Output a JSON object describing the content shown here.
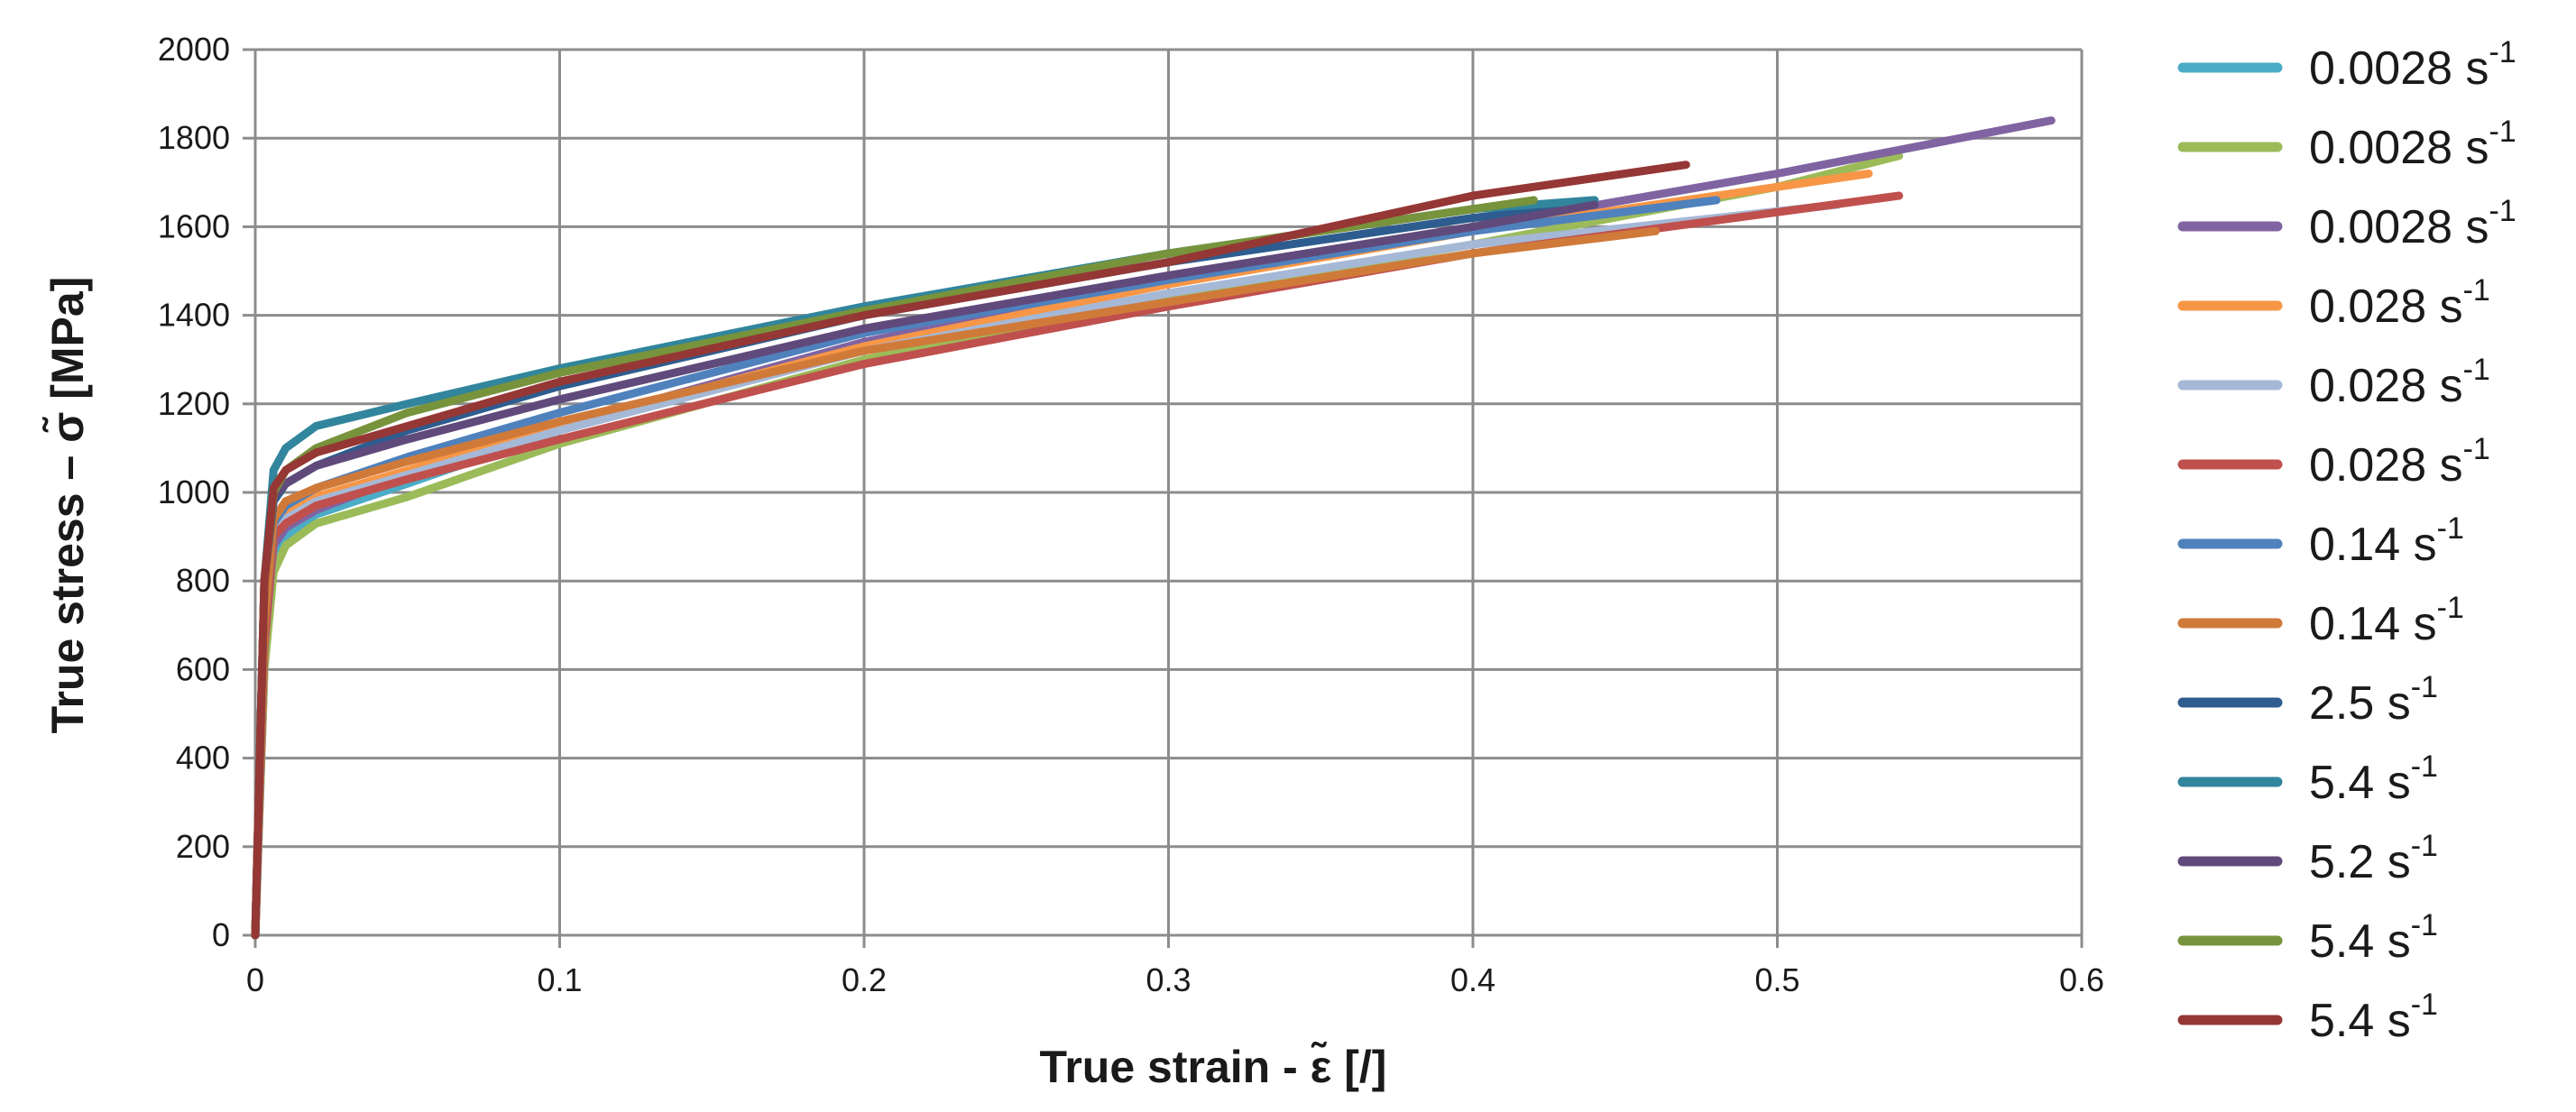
{
  "chart_data": {
    "type": "line",
    "xlabel": "True strain - ε̃ [/]",
    "ylabel": "True stress – σ̃ [MPa]",
    "xlim": [
      0,
      0.6
    ],
    "ylim": [
      0,
      2000
    ],
    "xticks": [
      "0",
      "0.1",
      "0.2",
      "0.3",
      "0.4",
      "0.5",
      "0.6"
    ],
    "yticks": [
      "0",
      "200",
      "400",
      "600",
      "800",
      "1000",
      "1200",
      "1400",
      "1600",
      "1800",
      "2000"
    ],
    "grid": true,
    "legend_position": "right",
    "series": [
      {
        "name": "0.0028",
        "unit": "s",
        "exp": "-1",
        "color": "#4bacc6",
        "x": [
          0,
          0.003,
          0.006,
          0.01,
          0.02,
          0.05,
          0.1,
          0.2,
          0.3,
          0.4,
          0.48
        ],
        "y": [
          0,
          600,
          850,
          900,
          950,
          1020,
          1140,
          1330,
          1480,
          1590,
          1660
        ]
      },
      {
        "name": "0.0028",
        "unit": "s",
        "exp": "-1",
        "color": "#9bbb59",
        "x": [
          0,
          0.003,
          0.006,
          0.01,
          0.02,
          0.05,
          0.1,
          0.2,
          0.3,
          0.4,
          0.5,
          0.54
        ],
        "y": [
          0,
          600,
          820,
          880,
          930,
          990,
          1110,
          1300,
          1440,
          1560,
          1690,
          1760
        ]
      },
      {
        "name": "0.0028",
        "unit": "s",
        "exp": "-1",
        "color": "#8064a2",
        "x": [
          0,
          0.003,
          0.006,
          0.01,
          0.02,
          0.05,
          0.1,
          0.2,
          0.3,
          0.4,
          0.5,
          0.59
        ],
        "y": [
          0,
          650,
          880,
          920,
          960,
          1040,
          1150,
          1340,
          1480,
          1600,
          1720,
          1840
        ]
      },
      {
        "name": "0.028",
        "unit": "s",
        "exp": "-1",
        "color": "#f79646",
        "x": [
          0,
          0.003,
          0.006,
          0.01,
          0.02,
          0.05,
          0.1,
          0.2,
          0.3,
          0.4,
          0.53
        ],
        "y": [
          0,
          650,
          900,
          950,
          990,
          1050,
          1150,
          1330,
          1470,
          1590,
          1720
        ]
      },
      {
        "name": "0.028",
        "unit": "s",
        "exp": "-1",
        "color": "#a5b8d6",
        "x": [
          0,
          0.003,
          0.006,
          0.01,
          0.02,
          0.05,
          0.1,
          0.2,
          0.3,
          0.4,
          0.52
        ],
        "y": [
          0,
          650,
          900,
          940,
          980,
          1040,
          1140,
          1320,
          1450,
          1560,
          1650
        ]
      },
      {
        "name": "0.028",
        "unit": "s",
        "exp": "-1",
        "color": "#c0504d",
        "x": [
          0,
          0.003,
          0.006,
          0.01,
          0.02,
          0.05,
          0.1,
          0.2,
          0.3,
          0.4,
          0.54
        ],
        "y": [
          0,
          650,
          900,
          930,
          970,
          1030,
          1120,
          1290,
          1420,
          1540,
          1670
        ]
      },
      {
        "name": "0.14",
        "unit": "s",
        "exp": "-1",
        "color": "#4f81bd",
        "x": [
          0,
          0.003,
          0.006,
          0.01,
          0.02,
          0.05,
          0.1,
          0.2,
          0.3,
          0.4,
          0.48
        ],
        "y": [
          0,
          700,
          930,
          970,
          1010,
          1080,
          1180,
          1360,
          1480,
          1590,
          1660
        ]
      },
      {
        "name": "0.14",
        "unit": "s",
        "exp": "-1",
        "color": "#d07a3a",
        "x": [
          0,
          0.003,
          0.006,
          0.01,
          0.02,
          0.05,
          0.1,
          0.2,
          0.3,
          0.4,
          0.46
        ],
        "y": [
          0,
          700,
          940,
          980,
          1010,
          1070,
          1160,
          1320,
          1430,
          1540,
          1590
        ]
      },
      {
        "name": "2.5",
        "unit": "s",
        "exp": "-1",
        "color": "#2e5c8e",
        "x": [
          0,
          0.003,
          0.006,
          0.01,
          0.02,
          0.05,
          0.1,
          0.2,
          0.3,
          0.4,
          0.44
        ],
        "y": [
          0,
          800,
          980,
          1020,
          1060,
          1140,
          1240,
          1400,
          1520,
          1620,
          1650
        ]
      },
      {
        "name": "5.4",
        "unit": "s",
        "exp": "-1",
        "color": "#31859c",
        "x": [
          0,
          0.003,
          0.006,
          0.01,
          0.02,
          0.05,
          0.1,
          0.2,
          0.3,
          0.4,
          0.44
        ],
        "y": [
          0,
          800,
          1050,
          1100,
          1150,
          1200,
          1280,
          1420,
          1540,
          1640,
          1660
        ]
      },
      {
        "name": "5.2",
        "unit": "s",
        "exp": "-1",
        "color": "#604a7b",
        "x": [
          0,
          0.003,
          0.006,
          0.01,
          0.02,
          0.05,
          0.1,
          0.2,
          0.3,
          0.4,
          0.44
        ],
        "y": [
          0,
          800,
          990,
          1020,
          1060,
          1120,
          1210,
          1370,
          1490,
          1600,
          1650
        ]
      },
      {
        "name": "5.4",
        "unit": "s",
        "exp": "-1",
        "color": "#77933c",
        "x": [
          0,
          0.003,
          0.006,
          0.01,
          0.02,
          0.05,
          0.1,
          0.2,
          0.3,
          0.4,
          0.42
        ],
        "y": [
          0,
          800,
          1000,
          1050,
          1100,
          1180,
          1270,
          1410,
          1540,
          1640,
          1660
        ]
      },
      {
        "name": "5.4",
        "unit": "s",
        "exp": "-1",
        "color": "#953735",
        "x": [
          0,
          0.003,
          0.006,
          0.01,
          0.02,
          0.05,
          0.1,
          0.2,
          0.3,
          0.4,
          0.47
        ],
        "y": [
          0,
          800,
          1010,
          1050,
          1090,
          1150,
          1250,
          1400,
          1520,
          1670,
          1740
        ]
      }
    ]
  }
}
